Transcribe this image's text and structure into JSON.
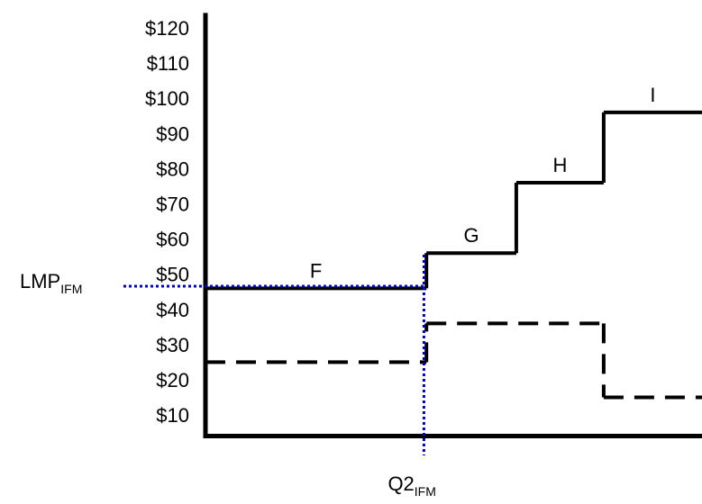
{
  "chart_data": {
    "type": "step",
    "xlim": [
      0,
      100
    ],
    "ylim": [
      4,
      124
    ],
    "yticks": [
      {
        "value": 10,
        "label": "$10"
      },
      {
        "value": 20,
        "label": "$20"
      },
      {
        "value": 30,
        "label": "$30"
      },
      {
        "value": 40,
        "label": "$40"
      },
      {
        "value": 50,
        "label": "$50"
      },
      {
        "value": 60,
        "label": "$60"
      },
      {
        "value": 70,
        "label": "$70"
      },
      {
        "value": 80,
        "label": "$80"
      },
      {
        "value": 90,
        "label": "$90"
      },
      {
        "value": 100,
        "label": "$100"
      },
      {
        "value": 110,
        "label": "$110"
      },
      {
        "value": 120,
        "label": "$120"
      }
    ],
    "series": [
      {
        "style": "solid",
        "color": "#000000",
        "x": [
          0,
          44.5,
          62.6,
          80.2
        ],
        "values": [
          46,
          56,
          76,
          96
        ],
        "segment_labels": [
          "F",
          "G",
          "H",
          "I"
        ]
      },
      {
        "style": "dashed",
        "color": "#000000",
        "x": [
          0,
          44.5,
          80.2
        ],
        "values": [
          25,
          36,
          15
        ]
      }
    ],
    "lmp": {
      "value": 46.6,
      "label": "LMP",
      "subscript": "IFM",
      "color": "#0000cc"
    },
    "q2": {
      "value": 44,
      "label": "Q2",
      "subscript": "IFM",
      "color": "#0000cc"
    }
  }
}
